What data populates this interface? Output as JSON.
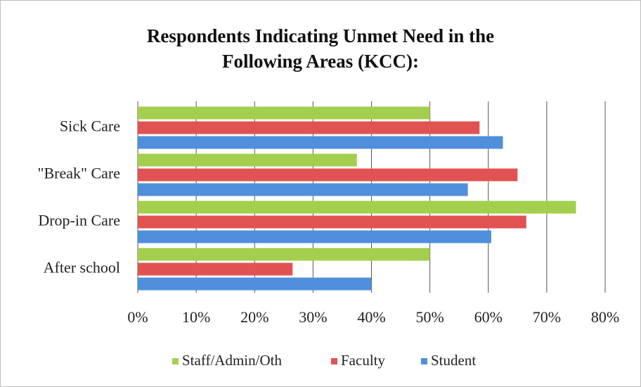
{
  "chart_data": {
    "type": "hbar",
    "title": "Respondents Indicating Unmet Need in the Following Areas (KCC):",
    "categories": [
      "Sick Care",
      "\"Break\" Care",
      "Drop-in Care",
      "After school"
    ],
    "series": [
      {
        "name": "Staff/Admin/Oth",
        "color": "#a4cf4e",
        "values": [
          50,
          37.5,
          75,
          50
        ]
      },
      {
        "name": "Faculty",
        "color": "#e05352",
        "values": [
          58.5,
          65,
          66.5,
          26.5
        ]
      },
      {
        "name": "Student",
        "color": "#4f8fdc",
        "values": [
          62.5,
          56.5,
          60.5,
          40
        ]
      }
    ],
    "xlim": [
      0,
      80
    ],
    "xticks": [
      {
        "value": 0,
        "label": "0%"
      },
      {
        "value": 10,
        "label": "10%"
      },
      {
        "value": 20,
        "label": "20%"
      },
      {
        "value": 30,
        "label": "30%"
      },
      {
        "value": 40,
        "label": "40%"
      },
      {
        "value": 50,
        "label": "50%"
      },
      {
        "value": 60,
        "label": "60%"
      },
      {
        "value": 70,
        "label": "70%"
      },
      {
        "value": 80,
        "label": "80%"
      }
    ],
    "grid": true,
    "legend": "bottom"
  }
}
